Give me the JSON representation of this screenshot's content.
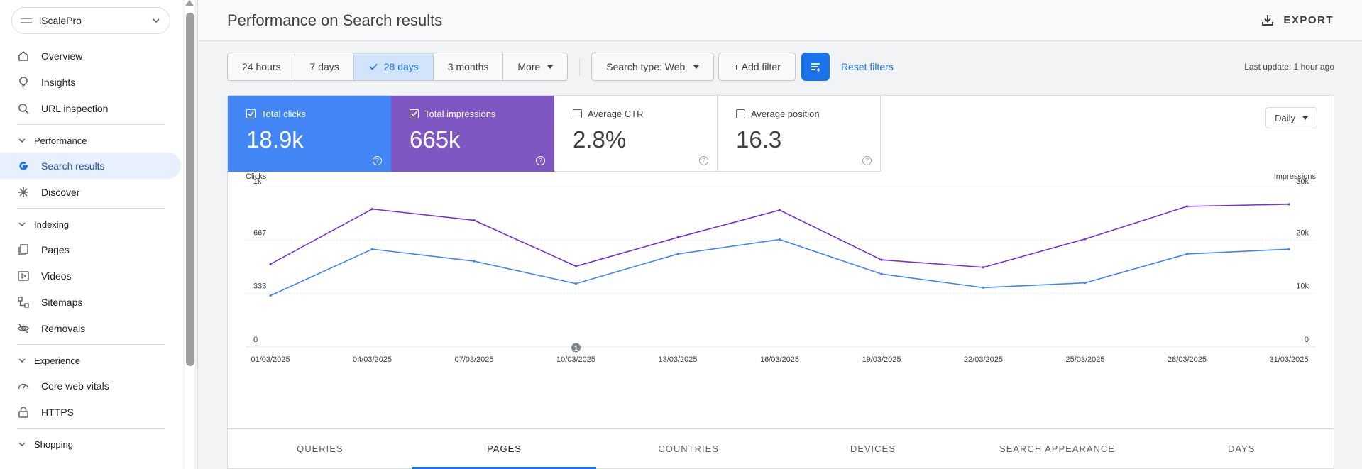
{
  "property": {
    "name": "iScalePro"
  },
  "sidebar": {
    "items_top": [
      {
        "label": "Overview",
        "icon": "home-icon"
      },
      {
        "label": "Insights",
        "icon": "lightbulb-icon"
      },
      {
        "label": "URL inspection",
        "icon": "search-icon"
      }
    ],
    "performance": {
      "title": "Performance",
      "items": [
        {
          "label": "Search results",
          "icon": "google-g-icon",
          "active": true
        },
        {
          "label": "Discover",
          "icon": "asterisk-icon"
        }
      ]
    },
    "indexing": {
      "title": "Indexing",
      "items": [
        {
          "label": "Pages",
          "icon": "pages-icon"
        },
        {
          "label": "Videos",
          "icon": "video-icon"
        },
        {
          "label": "Sitemaps",
          "icon": "sitemap-icon"
        },
        {
          "label": "Removals",
          "icon": "eye-off-icon"
        }
      ]
    },
    "experience": {
      "title": "Experience",
      "items": [
        {
          "label": "Core web vitals",
          "icon": "gauge-icon"
        },
        {
          "label": "HTTPS",
          "icon": "lock-icon"
        }
      ]
    },
    "shopping": {
      "title": "Shopping"
    }
  },
  "header": {
    "title": "Performance on Search results",
    "export_label": "EXPORT"
  },
  "filters": {
    "ranges": [
      "24 hours",
      "7 days",
      "28 days",
      "3 months",
      "More"
    ],
    "selected_range": "28 days",
    "search_type": "Search type: Web",
    "add_filter": "+ Add filter",
    "reset": "Reset filters",
    "last_update": "Last update: 1 hour ago"
  },
  "metrics": [
    {
      "label": "Total clicks",
      "value": "18.9k",
      "checked": true,
      "color": "#4285f4"
    },
    {
      "label": "Total impressions",
      "value": "665k",
      "checked": true,
      "color": "#7e57c2"
    },
    {
      "label": "Average CTR",
      "value": "2.8%",
      "checked": false
    },
    {
      "label": "Average position",
      "value": "16.3",
      "checked": false
    }
  ],
  "granularity": "Daily",
  "chart_data": {
    "type": "line",
    "x": [
      "01/03/2025",
      "04/03/2025",
      "07/03/2025",
      "10/03/2025",
      "13/03/2025",
      "16/03/2025",
      "19/03/2025",
      "22/03/2025",
      "25/03/2025",
      "28/03/2025",
      "31/03/2025"
    ],
    "y_left": {
      "label": "Clicks",
      "ticks": [
        "0",
        "333",
        "667",
        "1k"
      ],
      "range": [
        0,
        1000
      ]
    },
    "y_right": {
      "label": "Impressions",
      "ticks": [
        "0",
        "10k",
        "20k",
        "30k"
      ],
      "range": [
        0,
        30000
      ]
    },
    "series": [
      {
        "name": "Clicks",
        "axis": "left",
        "color": "#4285f4",
        "values": [
          320,
          610,
          535,
          395,
          580,
          670,
          455,
          370,
          400,
          580,
          610
        ]
      },
      {
        "name": "Impressions",
        "axis": "right",
        "color": "#7b2fd4",
        "values": [
          15500,
          25800,
          23700,
          15100,
          20500,
          25600,
          16300,
          14900,
          20200,
          26300,
          26700
        ]
      }
    ],
    "annotation": {
      "x": "10/03/2025",
      "label": "1"
    },
    "grid": true
  },
  "tabs": [
    "QUERIES",
    "PAGES",
    "COUNTRIES",
    "DEVICES",
    "SEARCH APPEARANCE",
    "DAYS"
  ],
  "active_tab": "PAGES"
}
